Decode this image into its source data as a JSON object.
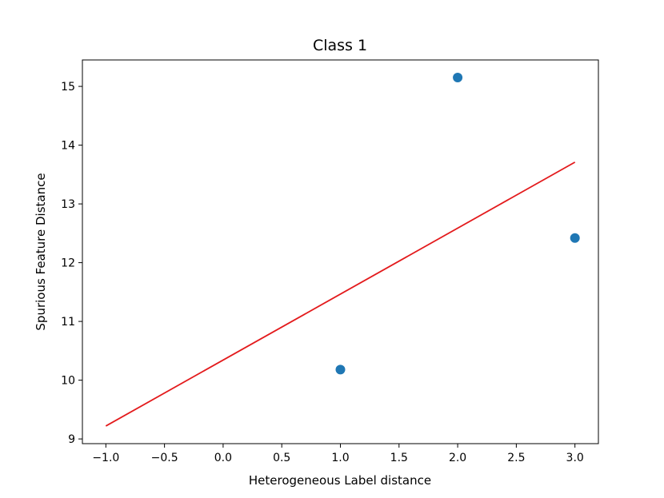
{
  "chart_data": {
    "type": "scatter",
    "title": "Class 1",
    "xlabel": "Heterogeneous Label distance",
    "ylabel": "Spurious Feature Distance",
    "xlim": [
      -1.2,
      3.2
    ],
    "ylim": [
      8.92,
      15.45
    ],
    "xticks": [
      -1.0,
      -0.5,
      0.0,
      0.5,
      1.0,
      1.5,
      2.0,
      2.5,
      3.0
    ],
    "xtick_labels": [
      "−1.0",
      "−0.5",
      "0.0",
      "0.5",
      "1.0",
      "1.5",
      "2.0",
      "2.5",
      "3.0"
    ],
    "yticks": [
      9,
      10,
      11,
      12,
      13,
      14,
      15
    ],
    "ytick_labels": [
      "9",
      "10",
      "11",
      "12",
      "13",
      "14",
      "15"
    ],
    "grid": false,
    "series": [
      {
        "type": "scatter",
        "color": "#1f77b4",
        "points": [
          [
            1.0,
            10.18
          ],
          [
            2.0,
            15.15
          ],
          [
            3.0,
            12.42
          ]
        ]
      },
      {
        "type": "line",
        "color": "#e31a1c",
        "points": [
          [
            -1.0,
            9.22
          ],
          [
            3.0,
            13.71
          ]
        ]
      }
    ]
  }
}
